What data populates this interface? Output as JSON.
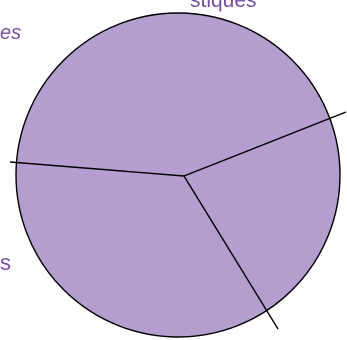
{
  "fragments": {
    "title_tail": "stiques",
    "subtitle_tail": "es",
    "label_tail": "s"
  },
  "colors": {
    "fill": "#b39ecf",
    "stroke": "#000000",
    "text": "#7b4fa0"
  }
}
